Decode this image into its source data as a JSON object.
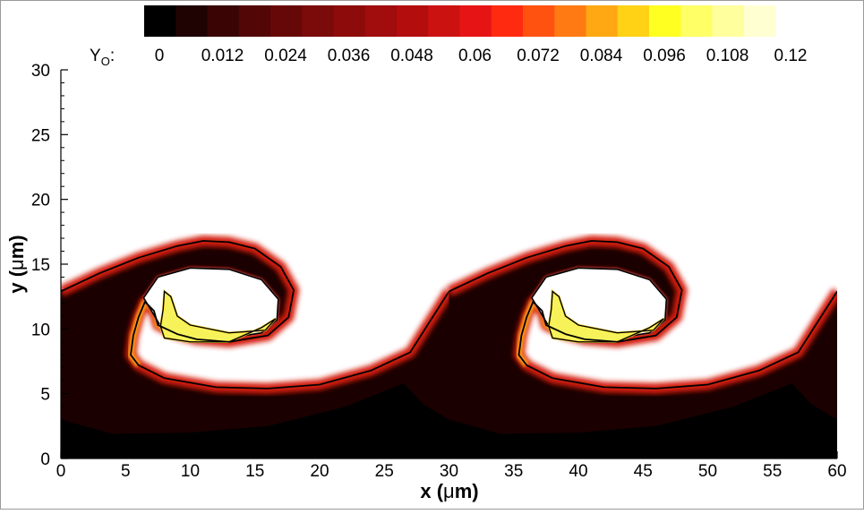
{
  "chart_data": {
    "type": "heatmap",
    "variable_label": "Y",
    "variable_subscript": "O",
    "variable_suffix": ":",
    "colorbar": {
      "placement": "top",
      "levels": 20,
      "range": [
        0,
        0.12
      ],
      "tick_labels": [
        "0",
        "0.012",
        "0.024",
        "0.036",
        "0.048",
        "0.06",
        "0.072",
        "0.084",
        "0.096",
        "0.108",
        "0.12"
      ],
      "colors": [
        "#000000",
        "#1f0202",
        "#3a0404",
        "#520606",
        "#670808",
        "#7b0a0a",
        "#8e0b0b",
        "#a10c0c",
        "#b40d0d",
        "#cc1111",
        "#e61414",
        "#ff2a0f",
        "#ff5210",
        "#ff7a12",
        "#ffa814",
        "#ffd216",
        "#ffff22",
        "#ffff66",
        "#ffff9e",
        "#ffffd2"
      ]
    },
    "x_axis": {
      "label_prefix": "x (",
      "label_greek": "μ",
      "label_suffix": "m)",
      "range": [
        0,
        60
      ],
      "ticks": [
        0,
        5,
        10,
        15,
        20,
        25,
        30,
        35,
        40,
        45,
        50,
        55,
        60
      ],
      "tick_labels": [
        "0",
        "5",
        "10",
        "15",
        "20",
        "25",
        "30",
        "35",
        "40",
        "45",
        "50",
        "55",
        "60"
      ]
    },
    "y_axis": {
      "label_prefix": "y (",
      "label_greek": "μ",
      "label_suffix": "m)",
      "range": [
        0,
        30
      ],
      "ticks": [
        0,
        5,
        10,
        15,
        20,
        25,
        30
      ],
      "tick_labels": [
        "0",
        "5",
        "10",
        "15",
        "20",
        "25",
        "30"
      ]
    },
    "grid": false,
    "field": {
      "description_type": "rolled-up shear-layer contour",
      "period": 30,
      "colors": {
        "product_dark": "#1a0000",
        "deep_black": "#000000",
        "flame": "#d41c0a",
        "flame_hot": "#ff9e14",
        "core": "#f7f25a",
        "core_edge": "#ffe23a",
        "outline": "#000000",
        "fuel": "#ffffff"
      },
      "interface_upper_y": [
        [
          0,
          12.9
        ],
        [
          3,
          14.3
        ],
        [
          6,
          15.5
        ],
        [
          9,
          16.4
        ],
        [
          11,
          16.8
        ],
        [
          13,
          16.7
        ],
        [
          15,
          16.2
        ],
        [
          17,
          14.8
        ],
        [
          18,
          13.0
        ],
        [
          17.6,
          10.9
        ],
        [
          16,
          9.5
        ],
        [
          13,
          9.0
        ],
        [
          10.5,
          9.2
        ],
        [
          9,
          9.6
        ],
        [
          7.5,
          10.3
        ],
        [
          7.2,
          11.4
        ],
        [
          6.5,
          12.1
        ],
        [
          6,
          10.9
        ],
        [
          5.6,
          9.5
        ],
        [
          5.4,
          8.0
        ],
        [
          6,
          7.2
        ],
        [
          8,
          6.2
        ],
        [
          12,
          5.5
        ],
        [
          16,
          5.4
        ],
        [
          20,
          5.7
        ],
        [
          24,
          6.8
        ],
        [
          27,
          8.2
        ],
        [
          30,
          12.9
        ]
      ],
      "inner_edge_y": [
        [
          6.4,
          12.4
        ],
        [
          7.5,
          14.0
        ],
        [
          10,
          14.7
        ],
        [
          13,
          14.6
        ],
        [
          15.5,
          13.8
        ],
        [
          16.8,
          12.3
        ],
        [
          16.7,
          10.7
        ],
        [
          15.5,
          9.7
        ],
        [
          13,
          9.3
        ],
        [
          10.5,
          9.4
        ],
        [
          8.8,
          9.8
        ],
        [
          7.6,
          10.4
        ]
      ],
      "core_y": [
        [
          8.0,
          12.9
        ],
        [
          8.5,
          12.5
        ],
        [
          9.0,
          11.0
        ],
        [
          10.0,
          10.3
        ],
        [
          13.0,
          9.7
        ],
        [
          15.8,
          9.9
        ],
        [
          16.6,
          10.8
        ],
        [
          15.5,
          10.1
        ],
        [
          13.0,
          9.0
        ],
        [
          10.0,
          9.0
        ],
        [
          8.0,
          9.3
        ],
        [
          7.7,
          10.2
        ],
        [
          7.9,
          11.5
        ]
      ],
      "dark_bottom_y": [
        [
          0,
          3.0
        ],
        [
          4,
          1.9
        ],
        [
          10,
          2.0
        ],
        [
          16,
          2.5
        ],
        [
          22,
          4.0
        ],
        [
          26.5,
          5.8
        ],
        [
          28,
          4.2
        ],
        [
          30,
          3.0
        ]
      ]
    }
  }
}
